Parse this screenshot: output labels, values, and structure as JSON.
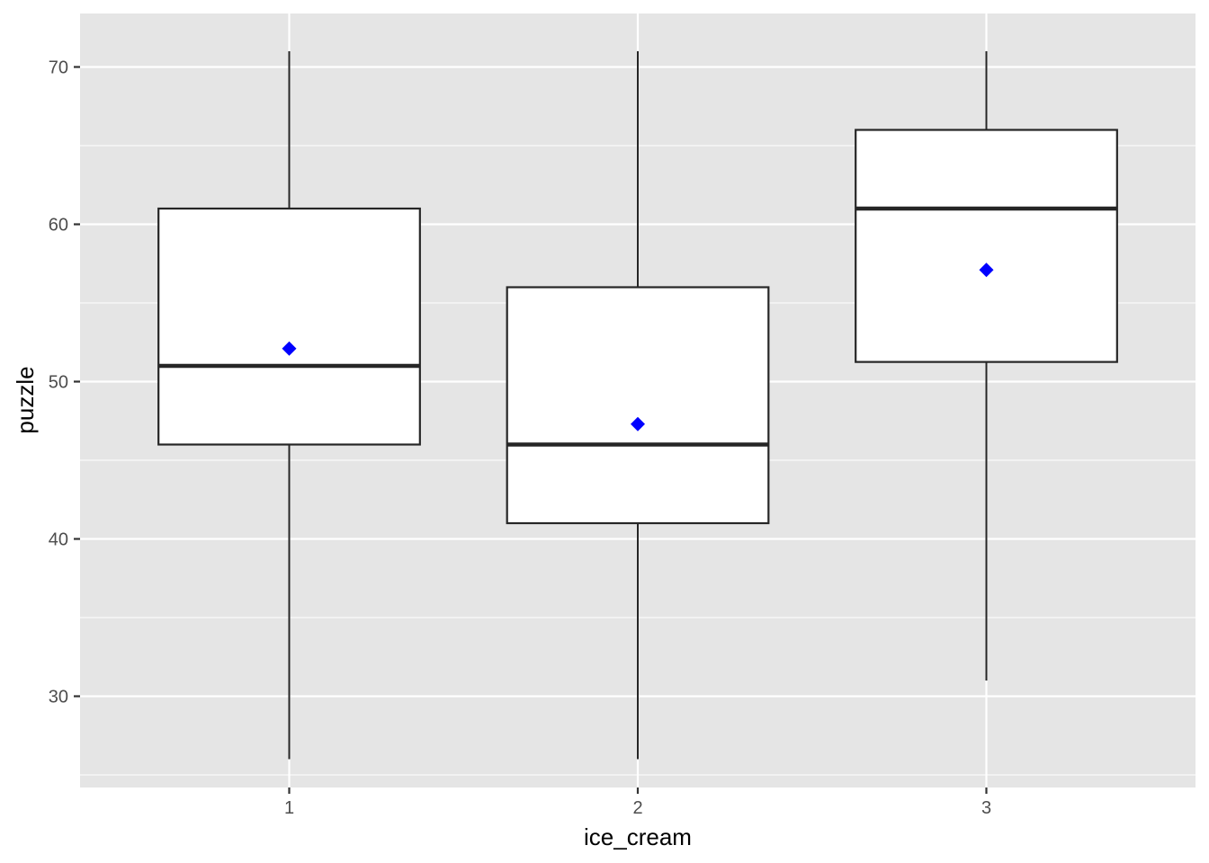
{
  "chart_data": {
    "type": "boxplot",
    "title": "",
    "xlabel": "ice_cream",
    "ylabel": "puzzle",
    "categories": [
      "1",
      "2",
      "3"
    ],
    "ylim": [
      24.2,
      73.4
    ],
    "yticks": [
      30,
      40,
      50,
      60,
      70
    ],
    "grid": true,
    "boxes": [
      {
        "category": "1",
        "whisker_low": 26,
        "q1": 46,
        "median": 51,
        "q3": 61,
        "whisker_high": 71,
        "mean": 52.1
      },
      {
        "category": "2",
        "whisker_low": 26,
        "q1": 41,
        "median": 46,
        "q3": 56,
        "whisker_high": 71,
        "mean": 47.3
      },
      {
        "category": "3",
        "whisker_low": 31,
        "q1": 51.25,
        "median": 61,
        "q3": 66,
        "whisker_high": 71,
        "mean": 57.1
      }
    ],
    "colors": {
      "panel_background": "#e5e5e5",
      "grid": "#ffffff",
      "box_fill": "#ffffff",
      "box_outline": "#262626",
      "mean_marker": "#0000ff"
    }
  }
}
